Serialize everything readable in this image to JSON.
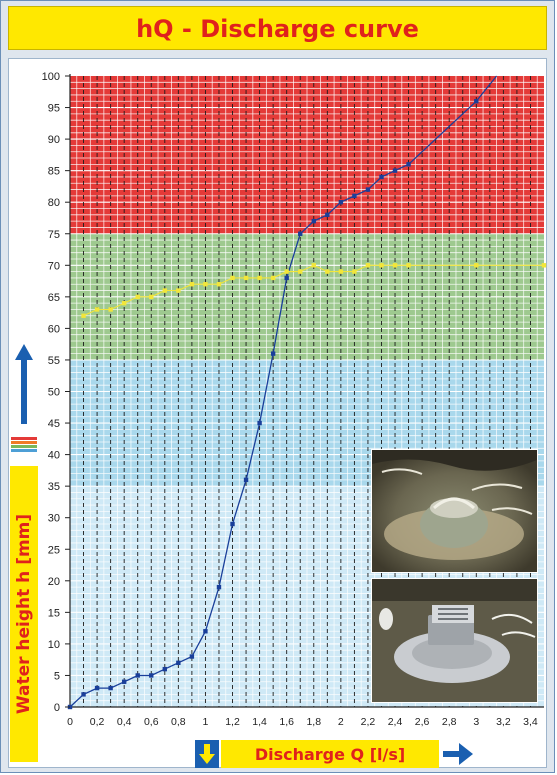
{
  "header": {
    "title": "hQ - Discharge curve"
  },
  "colors": {
    "red_zone": "#e43a38",
    "green_zone": "#9ec98f",
    "blue_zone": "#a9d8ec",
    "light_blue_zone": "#cfe9f6",
    "blue_series": "#1a3f9a",
    "yellow_series": "#f2e63a",
    "accent_yellow": "#ffe800",
    "accent_red": "#e0221c"
  },
  "chart_data": {
    "type": "line",
    "title": "hQ - Discharge curve",
    "xlabel": "Discharge Q [l/s]",
    "ylabel": "Water height h [mm]",
    "xlim": [
      0,
      3.5
    ],
    "ylim": [
      0,
      100
    ],
    "x_ticks": [
      "0",
      "0,2",
      "0,4",
      "0,6",
      "0,8",
      "1",
      "1,2",
      "1,4",
      "1,6",
      "1,8",
      "2",
      "2,2",
      "2,4",
      "2,6",
      "2,8",
      "3",
      "3,2",
      "3,4"
    ],
    "y_ticks": [
      "0",
      "5",
      "10",
      "15",
      "20",
      "25",
      "30",
      "35",
      "40",
      "45",
      "50",
      "55",
      "60",
      "65",
      "70",
      "75",
      "80",
      "85",
      "90",
      "95",
      "100"
    ],
    "grid": true,
    "zones": [
      {
        "from": 75,
        "to": 100,
        "color": "#e43a38"
      },
      {
        "from": 55,
        "to": 75,
        "color": "#9ec98f"
      },
      {
        "from": 35,
        "to": 55,
        "color": "#a9d8ec"
      },
      {
        "from": 0,
        "to": 35,
        "color": "#cfe9f6"
      }
    ],
    "series": [
      {
        "color": "#1a3f9a",
        "x": [
          0,
          0.1,
          0.2,
          0.3,
          0.4,
          0.5,
          0.6,
          0.7,
          0.8,
          0.9,
          1.0,
          1.1,
          1.2,
          1.3,
          1.4,
          1.5,
          1.6,
          1.7,
          1.8,
          1.9,
          2.0,
          2.1,
          2.2,
          2.3,
          2.4,
          2.5,
          3.0,
          3.15
        ],
        "y": [
          0,
          2,
          3,
          3,
          4,
          5,
          5,
          6,
          7,
          8,
          12,
          19,
          29,
          36,
          45,
          56,
          68,
          75,
          77,
          78,
          80,
          81,
          82,
          84,
          85,
          86,
          96,
          100
        ]
      },
      {
        "color": "#f2e63a",
        "x": [
          0.1,
          0.2,
          0.3,
          0.4,
          0.5,
          0.6,
          0.7,
          0.8,
          0.9,
          1.0,
          1.1,
          1.2,
          1.3,
          1.4,
          1.5,
          1.6,
          1.7,
          1.8,
          1.9,
          2.0,
          2.1,
          2.2,
          2.3,
          2.4,
          2.5,
          3.0,
          3.5
        ],
        "y": [
          62,
          63,
          63,
          64,
          65,
          65,
          66,
          66,
          67,
          67,
          67,
          68,
          68,
          68,
          68,
          69,
          69,
          70,
          69,
          69,
          69,
          70,
          70,
          70,
          70,
          70,
          70
        ]
      }
    ]
  }
}
